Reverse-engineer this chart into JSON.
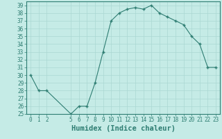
{
  "x": [
    0,
    1,
    2,
    5,
    6,
    7,
    8,
    9,
    10,
    11,
    12,
    13,
    14,
    15,
    16,
    17,
    18,
    19,
    20,
    21,
    22,
    23
  ],
  "y": [
    30,
    28,
    28,
    25,
    26,
    26,
    29,
    33,
    37,
    38,
    38.5,
    38.7,
    38.5,
    39,
    38,
    37.5,
    37,
    36.5,
    35,
    34,
    31,
    31
  ],
  "line_color": "#2e7d72",
  "marker": "+",
  "marker_color": "#2e7d72",
  "bg_color": "#c5ebe6",
  "grid_color": "#aad8d2",
  "xlabel": "Humidex (Indice chaleur)",
  "ylim": [
    25,
    39.5
  ],
  "xlim": [
    -0.5,
    23.5
  ],
  "yticks": [
    25,
    26,
    27,
    28,
    29,
    30,
    31,
    32,
    33,
    34,
    35,
    36,
    37,
    38,
    39
  ],
  "xticks": [
    0,
    1,
    2,
    5,
    6,
    7,
    8,
    9,
    10,
    11,
    12,
    13,
    14,
    15,
    16,
    17,
    18,
    19,
    20,
    21,
    22,
    23
  ],
  "tick_label_size": 5.5,
  "xlabel_size": 7.5
}
